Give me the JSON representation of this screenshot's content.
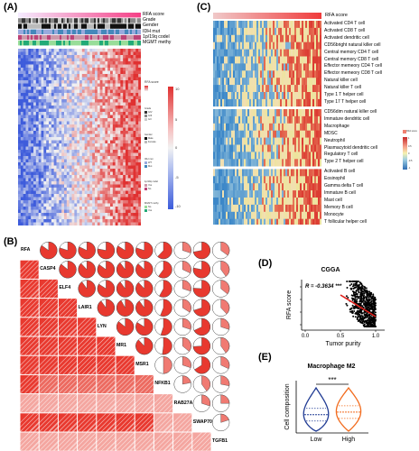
{
  "panelA": {
    "label": "(A)",
    "tracks": [
      "RFA score",
      "Grade",
      "Gender",
      "IDH mut",
      "1p/19q codel",
      "MGMT methy"
    ],
    "legend": {
      "rfa_title": "RFA score",
      "scale_ticks": [
        "10",
        "5",
        "0",
        "-5",
        "-10"
      ],
      "grade_title": "Grade",
      "grade_items": [
        "GIV",
        "GIII",
        "GII"
      ],
      "gender_title": "Gender",
      "gender_items": [
        "Male",
        "Female"
      ],
      "idh_title": "IDH mut",
      "idh_items": [
        "WT",
        "Mut"
      ],
      "codel_title": "1p/19q codel",
      "codel_items": [
        "Yes",
        "No"
      ],
      "mgmt_title": "MGMT methy",
      "mgmt_items": [
        "No",
        "Yes"
      ]
    },
    "colors": {
      "low": "#3b5bdb",
      "mid": "#f2f2f2",
      "high": "#e03131"
    }
  },
  "panelB": {
    "label": "(B)",
    "genes": [
      "RFA",
      "CASP4",
      "ELF4",
      "LAIR1",
      "LYN",
      "MR1",
      "MSR1",
      "NFKB1",
      "RAB27A",
      "SWAP70",
      "TGFB1"
    ],
    "colors": {
      "strong": "#e8392f",
      "weak": "#f4a6a0"
    }
  },
  "panelC": {
    "label": "(C)",
    "top_label": "RFA score",
    "legend_title": "RFA score",
    "scale_ticks": [
      "1",
      "0.5",
      "0",
      "-0.5",
      "-1"
    ],
    "cells_group1": [
      "Activated CD4 T cell",
      "Activated CD8 T cell",
      "Activated dendritic cell",
      "CD56bright natural killer cell",
      "Central memory CD4 T cell",
      "Central memory CD8 T cell",
      "Effector memeory CD4 T cell",
      "Effector memeory CD8 T cell",
      "Natural killer cell",
      "Natural killer T cell",
      "Type 1 T helper cell",
      "Type 17 T helper cell"
    ],
    "cells_group2": [
      "CD56dim natural killer cell",
      "Immature dendritic cell",
      "Macrophage",
      "MDSC",
      "Neutrophil",
      "Plasmacytoid dendritic cell",
      "Regulatory T cell",
      "Type 2 T helper cell"
    ],
    "cells_group3": [
      "Activated B cell",
      "Eosinophil",
      "Gamma delta T cell",
      "Immature  B cell",
      "Mast cell",
      "Memory B cell",
      "Monocyte",
      "T follicular helper cell"
    ]
  },
  "panelD": {
    "label": "(D)",
    "title": "CGGA",
    "r_label": "R = -0.3634 ***",
    "xlabel": "Tumor purity",
    "ylabel": "RFA score",
    "x_ticks": [
      "0.0",
      "0.5",
      "1.0"
    ]
  },
  "panelE": {
    "label": "(E)",
    "title": "Macrophage M2",
    "ylabel": "Cell composition",
    "significance": "***",
    "groups": [
      "Low",
      "High"
    ],
    "colors": {
      "low": "#1f3a93",
      "high": "#f26b1d"
    }
  }
}
